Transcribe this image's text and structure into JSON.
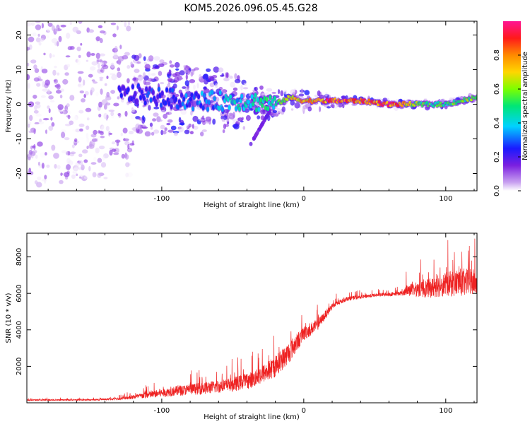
{
  "title": "KOM5.2026.096.05.45.G28",
  "chart_data": [
    {
      "type": "heatmap",
      "xlabel": "Height of straight line (km)",
      "ylabel": "Frequency (Hz)",
      "xlim": [
        -195,
        122
      ],
      "ylim": [
        -25,
        24
      ],
      "xticks": [
        -100,
        0,
        100
      ],
      "xtick_labels": [
        "-100",
        "0",
        "100"
      ],
      "yticks": [
        -20,
        -10,
        0,
        10,
        20
      ],
      "ytick_labels": [
        "-20",
        "-10",
        "0",
        "10",
        "20"
      ],
      "colorbar": {
        "label": "Normalized spectral amplitude",
        "range": [
          0,
          1
        ],
        "ticks": [
          0,
          0.2,
          0.4,
          0.6,
          0.8
        ],
        "tick_labels": [
          "0.0",
          "0.2",
          "0.4",
          "0.6",
          "0.8"
        ],
        "colormap": [
          "#ffffff",
          "#c8a0f0",
          "#7b1fe0",
          "#1a1aff",
          "#00d2ff",
          "#00e676",
          "#7cff00",
          "#ffd600",
          "#ff8a00",
          "#ff1a1a",
          "#ff1493"
        ]
      },
      "ridge": {
        "description_points_x": [
          -195,
          -120,
          -80,
          -40,
          -20,
          -10,
          0,
          20,
          40,
          60,
          80,
          100,
          122
        ],
        "frequency": [
          0,
          3,
          1,
          1,
          0,
          2,
          1,
          1,
          1,
          0,
          0,
          0,
          2
        ],
        "amplitude": [
          0.15,
          0.3,
          0.35,
          0.45,
          0.5,
          0.7,
          0.75,
          0.95,
          0.85,
          0.95,
          0.6,
          0.55,
          0.6
        ]
      }
    },
    {
      "type": "line",
      "xlabel": "Height of straight line (km)",
      "ylabel": "SNR (10 * v/v)",
      "xlim": [
        -195,
        122
      ],
      "ylim": [
        0,
        9300
      ],
      "xticks": [
        -100,
        0,
        100
      ],
      "xtick_labels": [
        "-100",
        "0",
        "100"
      ],
      "yticks": [
        2000,
        4000,
        6000,
        8000
      ],
      "ytick_labels": [
        "2000",
        "4000",
        "6000",
        "8000"
      ],
      "series": [
        {
          "name": "SNR",
          "color": "#ee2222",
          "x": [
            -195,
            -150,
            -130,
            -110,
            -90,
            -70,
            -50,
            -35,
            -20,
            -10,
            0,
            10,
            20,
            30,
            50,
            70,
            72,
            80,
            90,
            100,
            110,
            122
          ],
          "y": [
            150,
            160,
            220,
            420,
            650,
            800,
            1000,
            1300,
            2000,
            2800,
            3800,
            4300,
            5300,
            5700,
            5900,
            6000,
            6200,
            6200,
            6300,
            6500,
            6600,
            6600
          ],
          "noise": [
            60,
            60,
            100,
            300,
            450,
            550,
            650,
            750,
            1000,
            1000,
            700,
            500,
            300,
            200,
            150,
            200,
            500,
            700,
            900,
            1100,
            1300,
            1200
          ]
        }
      ]
    }
  ]
}
